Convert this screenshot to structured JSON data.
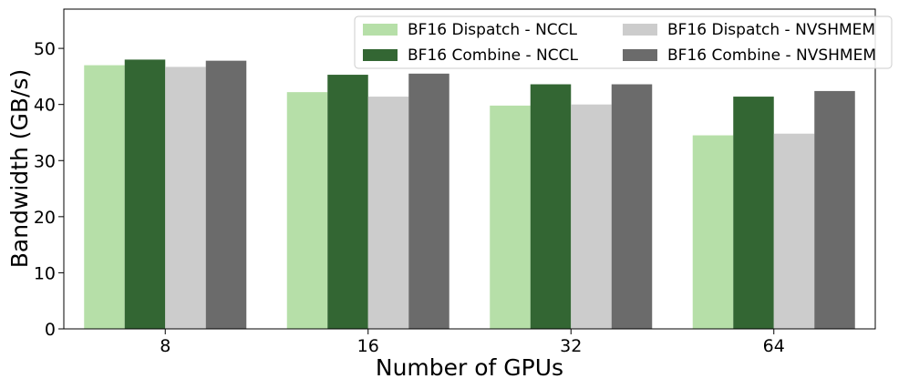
{
  "chart_data": {
    "type": "bar",
    "xlabel": "Number of GPUs",
    "ylabel": "Bandwidth (GB/s)",
    "categories": [
      "8",
      "16",
      "32",
      "64"
    ],
    "ylim": [
      0,
      57
    ],
    "yticks": [
      0,
      10,
      20,
      30,
      40,
      50
    ],
    "grid": false,
    "legend_position": "top-right",
    "series": [
      {
        "name": "BF16 Dispatch - NCCL",
        "color": "#b6dfa8",
        "values": [
          47.0,
          42.2,
          39.8,
          34.5
        ]
      },
      {
        "name": "BF16 Combine - NCCL",
        "color": "#336633",
        "values": [
          48.0,
          45.3,
          43.6,
          41.4
        ]
      },
      {
        "name": "BF16 Dispatch - NVSHMEM",
        "color": "#cccccc",
        "values": [
          46.7,
          41.4,
          40.0,
          34.8
        ]
      },
      {
        "name": "BF16 Combine - NVSHMEM",
        "color": "#6b6b6b",
        "values": [
          47.8,
          45.5,
          43.6,
          42.4
        ]
      }
    ]
  }
}
